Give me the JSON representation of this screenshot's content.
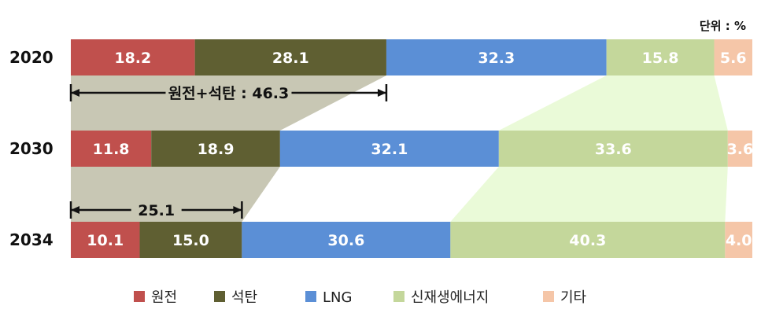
{
  "unit_label": "단위 : %",
  "chart_data": {
    "type": "bar",
    "orientation": "horizontal",
    "stacked": true,
    "categories": [
      "2020",
      "2030",
      "2034"
    ],
    "series": [
      {
        "name": "원전",
        "color": "#c0504d",
        "values": [
          18.2,
          11.8,
          10.1
        ]
      },
      {
        "name": "석탄",
        "color": "#5f5f32",
        "values": [
          28.1,
          18.9,
          15.0
        ]
      },
      {
        "name": "LNG",
        "color": "#5b8fd6",
        "values": [
          32.3,
          32.1,
          30.6
        ]
      },
      {
        "name": "신재생에너지",
        "color": "#c4d79b",
        "values": [
          15.8,
          33.6,
          40.3
        ]
      },
      {
        "name": "기타",
        "color": "#f5c6a8",
        "values": [
          5.6,
          3.6,
          4.0
        ]
      }
    ],
    "value_labels": [
      [
        "18.2",
        "28.1",
        "32.3",
        "15.8",
        "5.6"
      ],
      [
        "11.8",
        "18.9",
        "32.1",
        "33.6",
        "3.6"
      ],
      [
        "10.1",
        "15.0",
        "30.6",
        "40.3",
        "4.0"
      ]
    ],
    "annotations": [
      {
        "text": "원전+석탄 : 46.3",
        "category": "2020",
        "spans_series": [
          "원전",
          "석탄"
        ]
      },
      {
        "text": "25.1",
        "category": "2034",
        "spans_series": [
          "원전",
          "석탄"
        ]
      }
    ],
    "connector_colors": {
      "nuclear_coal": "#c8c7b4",
      "renewable": "#eafad8"
    },
    "xlim": [
      0,
      100
    ],
    "legend_position": "bottom"
  }
}
